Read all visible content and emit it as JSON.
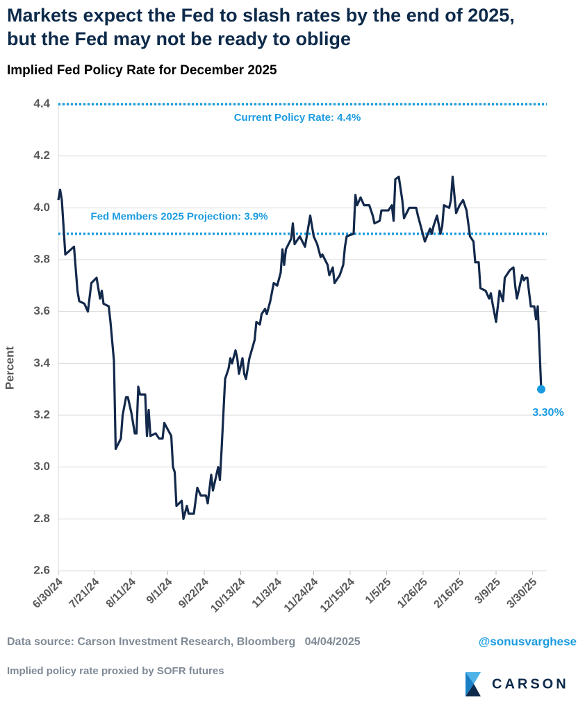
{
  "chart_data": {
    "type": "line",
    "title": [
      "Markets expect the Fed to slash rates by the end of 2025,",
      "but the Fed may not be ready to oblige"
    ],
    "subtitle": "Implied Fed Policy Rate for December 2025",
    "ylabel": "Percent",
    "ylim": [
      2.6,
      4.4
    ],
    "yticks": [
      2.6,
      2.8,
      {
        "value": 3,
        "label": "3.0"
      },
      3.2,
      3.4,
      3.6,
      3.8,
      {
        "value": 4,
        "label": "4.0"
      },
      4.2,
      4.4
    ],
    "xlim": [
      "2024-06-30",
      "2025-04-04"
    ],
    "xticks": [
      {
        "value": "2024-06-30",
        "label": "6/30/24"
      },
      {
        "value": "2024-07-21",
        "label": "7/21/24"
      },
      {
        "value": "2024-08-11",
        "label": "8/11/24"
      },
      {
        "value": "2024-09-01",
        "label": "9/1/24"
      },
      {
        "value": "2024-09-22",
        "label": "9/22/24"
      },
      {
        "value": "2024-10-13",
        "label": "10/13/24"
      },
      {
        "value": "2024-11-03",
        "label": "11/3/24"
      },
      {
        "value": "2024-11-24",
        "label": "11/24/24"
      },
      {
        "value": "2024-12-15",
        "label": "12/15/24"
      },
      {
        "value": "2025-01-05",
        "label": "1/5/25"
      },
      {
        "value": "2025-01-26",
        "label": "1/26/25"
      },
      {
        "value": "2025-02-16",
        "label": "2/16/25"
      },
      {
        "value": "2025-03-09",
        "label": "3/9/25"
      },
      {
        "value": "2025-03-30",
        "label": "3/30/25"
      }
    ],
    "grid": true,
    "reference_lines": [
      {
        "value": 4.4,
        "label": "Current Policy Rate: 4.4%",
        "color": "#1a9be0"
      },
      {
        "value": 3.9,
        "label": "Fed Members 2025 Projection: 3.9%",
        "color": "#1a9be0"
      }
    ],
    "x": [
      "2024-06-30",
      "2024-07-01",
      "2024-07-02",
      "2024-07-04",
      "2024-07-09",
      "2024-07-11",
      "2024-07-12",
      "2024-07-15",
      "2024-07-17",
      "2024-07-19",
      "2024-07-22",
      "2024-07-24",
      "2024-07-25",
      "2024-07-26",
      "2024-07-29",
      "2024-07-30",
      "2024-08-01",
      "2024-08-02",
      "2024-08-05",
      "2024-08-06",
      "2024-08-08",
      "2024-08-09",
      "2024-08-11",
      "2024-08-13",
      "2024-08-14",
      "2024-08-15",
      "2024-08-16",
      "2024-08-19",
      "2024-08-20",
      "2024-08-21",
      "2024-08-22",
      "2024-08-25",
      "2024-08-27",
      "2024-08-29",
      "2024-08-30",
      "2024-09-03",
      "2024-09-04",
      "2024-09-05",
      "2024-09-06",
      "2024-09-09",
      "2024-09-10",
      "2024-09-12",
      "2024-09-13",
      "2024-09-16",
      "2024-09-18",
      "2024-09-20",
      "2024-09-23",
      "2024-09-24",
      "2024-09-26",
      "2024-09-27",
      "2024-09-30",
      "2024-10-01",
      "2024-10-02",
      "2024-10-04",
      "2024-10-06",
      "2024-10-07",
      "2024-10-08",
      "2024-10-10",
      "2024-10-11",
      "2024-10-12",
      "2024-10-14",
      "2024-10-15",
      "2024-10-16",
      "2024-10-18",
      "2024-10-21",
      "2024-10-22",
      "2024-10-24",
      "2024-10-25",
      "2024-10-27",
      "2024-10-28",
      "2024-10-30",
      "2024-11-01",
      "2024-11-03",
      "2024-11-05",
      "2024-11-06",
      "2024-11-07",
      "2024-11-08",
      "2024-11-11",
      "2024-11-12",
      "2024-11-13",
      "2024-11-16",
      "2024-11-19",
      "2024-11-22",
      "2024-11-24",
      "2024-11-26",
      "2024-11-28",
      "2024-11-29",
      "2024-12-02",
      "2024-12-03",
      "2024-12-05",
      "2024-12-06",
      "2024-12-07",
      "2024-12-09",
      "2024-12-11",
      "2024-12-12",
      "2024-12-13",
      "2024-12-17",
      "2024-12-18",
      "2024-12-19",
      "2024-12-21",
      "2024-12-23",
      "2024-12-26",
      "2024-12-28",
      "2024-12-29",
      "2025-01-01",
      "2025-01-02",
      "2025-01-06",
      "2025-01-08",
      "2025-01-09",
      "2025-01-10",
      "2025-01-12",
      "2025-01-14",
      "2025-01-15",
      "2025-01-18",
      "2025-01-22",
      "2025-01-23",
      "2025-01-25",
      "2025-01-27",
      "2025-01-30",
      "2025-01-31",
      "2025-02-01",
      "2025-02-03",
      "2025-02-05",
      "2025-02-06",
      "2025-02-07",
      "2025-02-10",
      "2025-02-11",
      "2025-02-12",
      "2025-02-14",
      "2025-02-16",
      "2025-02-18",
      "2025-02-20",
      "2025-02-22",
      "2025-02-24",
      "2025-02-25",
      "2025-02-27",
      "2025-02-28",
      "2025-03-03",
      "2025-03-05",
      "2025-03-06",
      "2025-03-07",
      "2025-03-09",
      "2025-03-11",
      "2025-03-13",
      "2025-03-14",
      "2025-03-17",
      "2025-03-19",
      "2025-03-20",
      "2025-03-21",
      "2025-03-24",
      "2025-03-25",
      "2025-03-26",
      "2025-03-27",
      "2025-03-29",
      "2025-03-31",
      "2025-04-01",
      "2025-04-02",
      "2025-04-04"
    ],
    "series": [
      {
        "name": "Implied Fed Policy Rate",
        "color": "#13294b",
        "values": [
          4.03,
          4.07,
          4.03,
          3.82,
          3.85,
          3.68,
          3.64,
          3.63,
          3.6,
          3.71,
          3.73,
          3.65,
          3.68,
          3.63,
          3.62,
          3.56,
          3.41,
          3.07,
          3.11,
          3.2,
          3.27,
          3.27,
          3.21,
          3.13,
          3.13,
          3.31,
          3.28,
          3.28,
          3.12,
          3.22,
          3.12,
          3.13,
          3.11,
          3.11,
          3.17,
          3.12,
          3.0,
          2.98,
          2.85,
          2.87,
          2.8,
          2.85,
          2.82,
          2.82,
          2.92,
          2.89,
          2.89,
          2.86,
          2.97,
          2.91,
          3.0,
          2.95,
          3.07,
          3.34,
          3.38,
          3.42,
          3.4,
          3.45,
          3.42,
          3.36,
          3.42,
          3.36,
          3.34,
          3.42,
          3.49,
          3.56,
          3.55,
          3.59,
          3.61,
          3.59,
          3.64,
          3.71,
          3.7,
          3.75,
          3.84,
          3.78,
          3.84,
          3.88,
          3.94,
          3.86,
          3.89,
          3.85,
          3.97,
          3.89,
          3.86,
          3.81,
          3.82,
          3.78,
          3.74,
          3.77,
          3.71,
          3.72,
          3.74,
          3.78,
          3.85,
          3.89,
          3.9,
          4.05,
          4.01,
          4.04,
          4.01,
          4.01,
          3.97,
          3.94,
          3.95,
          3.99,
          3.99,
          4.01,
          3.95,
          4.11,
          4.12,
          4.03,
          3.96,
          4.0,
          4.0,
          3.97,
          3.92,
          3.87,
          3.92,
          3.9,
          3.93,
          3.97,
          3.9,
          3.93,
          4.01,
          4.0,
          4.03,
          4.12,
          3.98,
          4.01,
          4.03,
          3.99,
          3.89,
          3.87,
          3.79,
          3.79,
          3.69,
          3.68,
          3.65,
          3.67,
          3.63,
          3.56,
          3.68,
          3.64,
          3.73,
          3.76,
          3.77,
          3.7,
          3.65,
          3.74,
          3.72,
          3.73,
          3.73,
          3.62,
          3.62,
          3.57,
          3.62,
          3.3
        ]
      }
    ],
    "end_label": "3.30%",
    "end_marker_color": "#1a9be0",
    "source": "Data source: Carson Investment Research, Bloomberg   04/04/2025",
    "handle": "@sonusvarghese",
    "note": "Implied policy rate proxied by SOFR futures",
    "logo": "CARSON"
  }
}
